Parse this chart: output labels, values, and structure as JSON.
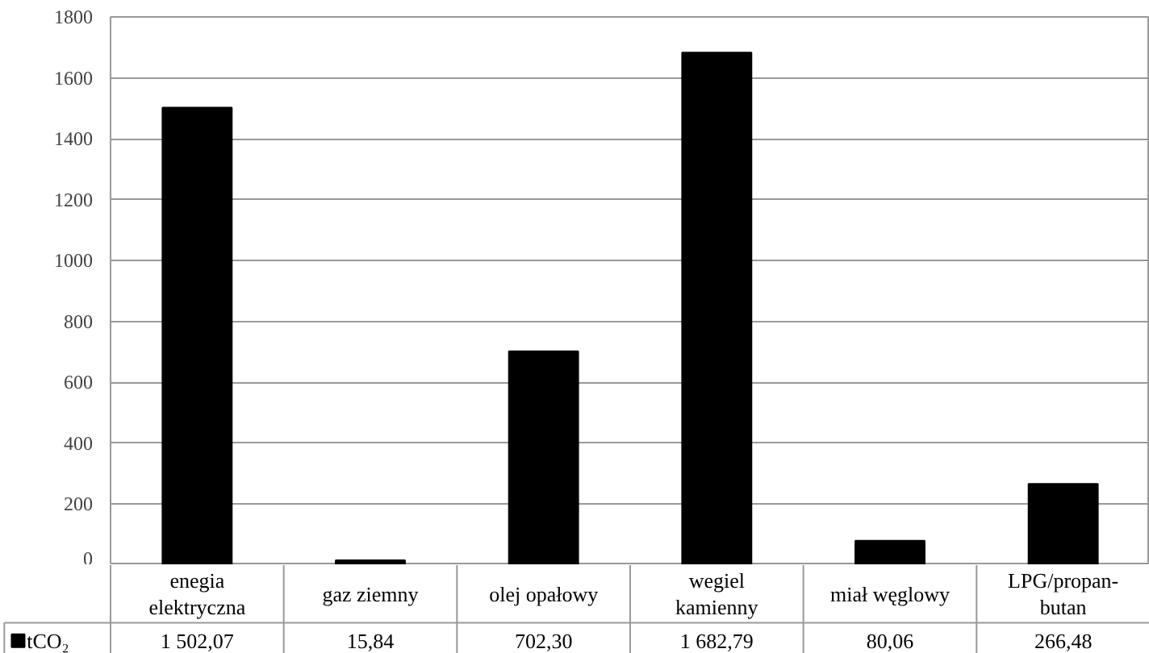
{
  "chart_data": {
    "type": "bar",
    "categories": [
      "enegia\nelektryczna",
      "gaz ziemny",
      "olej opałowy",
      "wegiel\nkamienny",
      "miał węglowy",
      "LPG/propan-\nbutan"
    ],
    "series": [
      {
        "name": "tCO₂",
        "color": "#000000",
        "values": [
          1502.07,
          15.84,
          702.3,
          1682.79,
          80.06,
          266.48
        ],
        "value_labels": [
          "1 502,07",
          "15,84",
          "702,30",
          "1 682,79",
          "80,06",
          "266,48"
        ]
      }
    ],
    "ylim": [
      0,
      1800
    ],
    "yticks": [
      0,
      200,
      400,
      600,
      800,
      1000,
      1200,
      1400,
      1600,
      1800
    ],
    "grid": "y",
    "legend": "bottom"
  }
}
